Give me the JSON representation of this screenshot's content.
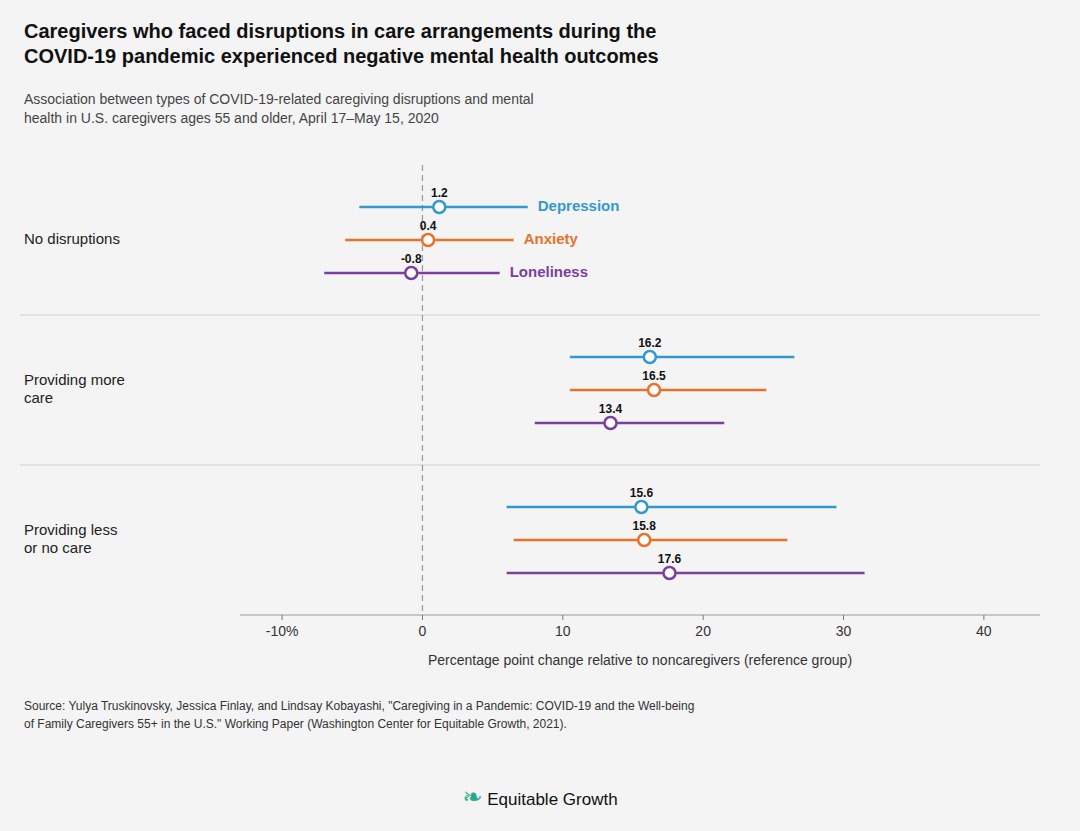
{
  "chart_data": {
    "type": "dot",
    "title": "Caregivers who faced disruptions in care arrangements during the\nCOVID-19 pandemic experienced negative mental health outcomes",
    "subtitle": "Association between types of COVID-19-related caregiving disruptions and mental\nhealth in U.S. caregivers ages 55 and older, April 17–May 15, 2020",
    "categories": [
      "No disruptions",
      "Providing more\ncare",
      "Providing less\nor no care"
    ],
    "series": [
      {
        "name": "Depression",
        "color": "#3399cc",
        "values": [
          1.2,
          16.2,
          15.6
        ],
        "ci_low": [
          -4.5,
          10.5,
          6.0
        ],
        "ci_high": [
          7.5,
          26.5,
          29.5
        ]
      },
      {
        "name": "Anxiety",
        "color": "#e8722a",
        "values": [
          0.4,
          16.5,
          15.8
        ],
        "ci_low": [
          -5.5,
          10.5,
          6.5
        ],
        "ci_high": [
          6.5,
          24.5,
          26.0
        ]
      },
      {
        "name": "Loneliness",
        "color": "#7b3fa0",
        "values": [
          -0.8,
          13.4,
          17.6
        ],
        "ci_low": [
          -7.0,
          8.0,
          6.0
        ],
        "ci_high": [
          5.5,
          21.5,
          31.5
        ]
      }
    ],
    "xlim": [
      -13,
      44
    ],
    "xticks": [
      {
        "value": -10,
        "label": "-10%"
      },
      0,
      10,
      20,
      30,
      40
    ],
    "xlabel": "Percentage point change relative to noncaregivers (reference group)",
    "source": "Source: Yulya Truskinovsky, Jessica Finlay, and Lindsay Kobayashi, \"Caregiving in a Pandemic: COVID-19 and the Well-being\nof Family Caregivers 55+ in the U.S.\" Working Paper (Washington Center for Equitable Growth, 2021).",
    "annotations": [
      "❧",
      "Equitable Growth"
    ],
    "data_labels": true,
    "grid": false
  }
}
